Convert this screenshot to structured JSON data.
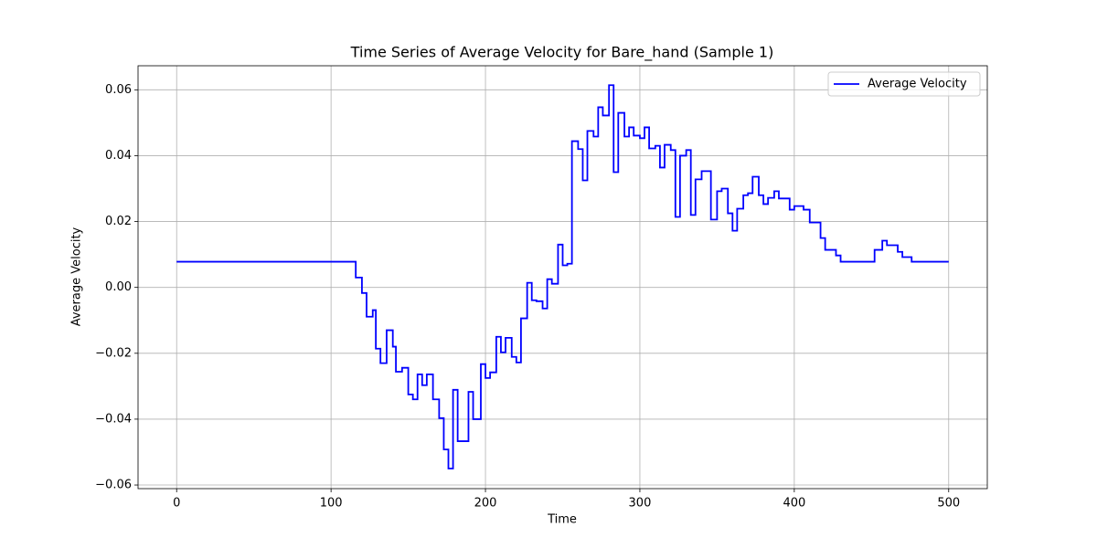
{
  "chart_data": {
    "type": "line",
    "drawstyle": "steps-post",
    "title": "Time Series of Average Velocity for Bare_hand (Sample 1)",
    "x_label": "Time",
    "y_label": "Average Velocity",
    "x": [
      0,
      116,
      120,
      123,
      127,
      129,
      132,
      136,
      140,
      142,
      146,
      150,
      153,
      156,
      159,
      162,
      166,
      170,
      173,
      176,
      179,
      182,
      189,
      192,
      197,
      200,
      203,
      207,
      210,
      213,
      217,
      220,
      223,
      227,
      230,
      233,
      237,
      240,
      243,
      247,
      250,
      253,
      256,
      260,
      263,
      266,
      270,
      273,
      276,
      280,
      283,
      286,
      290,
      293,
      296,
      300,
      303,
      306,
      310,
      313,
      316,
      320,
      323,
      326,
      330,
      333,
      336,
      340,
      346,
      350,
      353,
      357,
      360,
      363,
      367,
      370,
      373,
      377,
      380,
      383,
      387,
      390,
      397,
      400,
      406,
      410,
      417,
      420,
      427,
      430,
      452,
      457,
      460,
      467,
      470,
      476,
      500
    ],
    "series": [
      {
        "name": "Average Velocity",
        "color": "#0000ff",
        "values": [
          0.0078,
          0.003,
          -0.0017,
          -0.0089,
          -0.0069,
          -0.0186,
          -0.023,
          -0.013,
          -0.018,
          -0.0256,
          -0.0244,
          -0.0325,
          -0.034,
          -0.0264,
          -0.0297,
          -0.0264,
          -0.034,
          -0.0397,
          -0.0492,
          -0.055,
          -0.0311,
          -0.0467,
          -0.0317,
          -0.04,
          -0.0233,
          -0.0275,
          -0.0258,
          -0.015,
          -0.0197,
          -0.0153,
          -0.0211,
          -0.0228,
          -0.0094,
          0.0014,
          -0.0039,
          -0.0042,
          -0.0064,
          0.0025,
          0.0011,
          0.013,
          0.0067,
          0.0072,
          0.0444,
          0.042,
          0.0325,
          0.0475,
          0.0458,
          0.0547,
          0.0522,
          0.0614,
          0.035,
          0.053,
          0.0458,
          0.0486,
          0.0461,
          0.0453,
          0.0486,
          0.0422,
          0.043,
          0.0364,
          0.0433,
          0.0417,
          0.0214,
          0.04,
          0.0417,
          0.022,
          0.0328,
          0.0353,
          0.0206,
          0.0292,
          0.03,
          0.0225,
          0.0172,
          0.0239,
          0.028,
          0.0286,
          0.0336,
          0.028,
          0.0253,
          0.0272,
          0.0292,
          0.027,
          0.0236,
          0.0247,
          0.0236,
          0.0197,
          0.015,
          0.0114,
          0.0097,
          0.0078,
          0.0114,
          0.0142,
          0.0128,
          0.0108,
          0.0092,
          0.0078,
          0.0078
        ]
      }
    ],
    "xlim": [
      -25,
      525
    ],
    "ylim": [
      -0.0611,
      0.0673
    ],
    "xticks": [
      0,
      100,
      200,
      300,
      400,
      500
    ],
    "yticks": [
      {
        "value": -0.06,
        "label": "−0.06"
      },
      {
        "value": -0.04,
        "label": "−0.04"
      },
      {
        "value": -0.02,
        "label": "−0.02"
      },
      {
        "value": 0,
        "label": "0.00"
      },
      {
        "value": 0.02,
        "label": "0.02"
      },
      {
        "value": 0.04,
        "label": "0.04"
      },
      {
        "value": 0.06,
        "label": "0.06"
      }
    ],
    "grid": true,
    "legend": "upper right"
  }
}
